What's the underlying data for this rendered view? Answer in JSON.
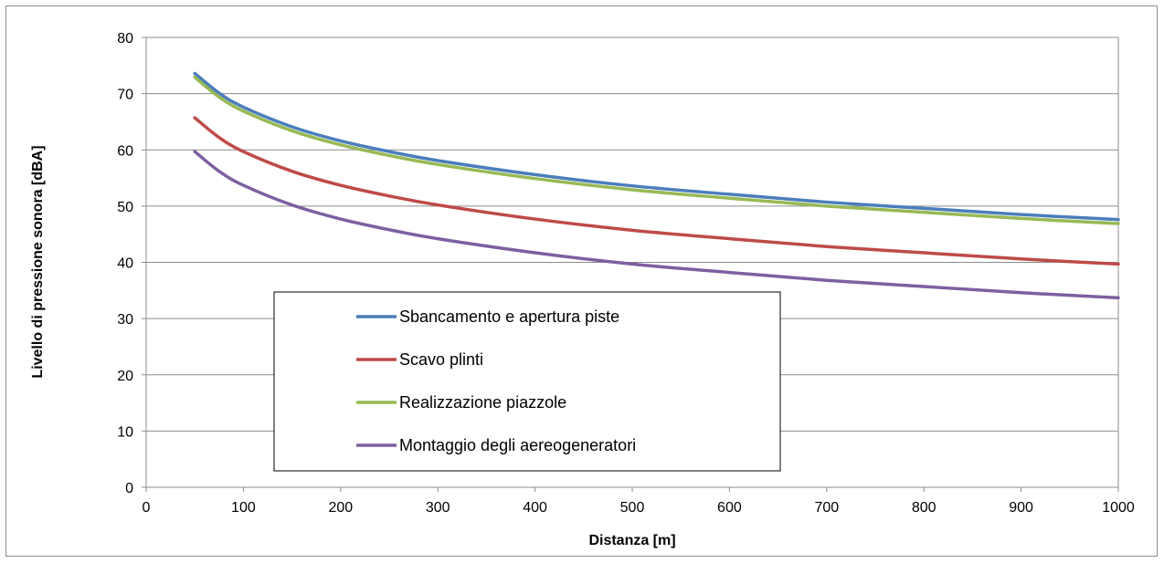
{
  "chart_data": {
    "type": "line",
    "title": "",
    "xlabel": "Distanza [m]",
    "ylabel": "Livello di pressione sonora [dBA]",
    "xlim": [
      0,
      1000
    ],
    "ylim": [
      0,
      80
    ],
    "xticks": [
      0,
      100,
      200,
      300,
      400,
      500,
      600,
      700,
      800,
      900,
      1000
    ],
    "yticks": [
      0,
      10,
      20,
      30,
      40,
      50,
      60,
      70,
      80
    ],
    "grid": "horizontal",
    "legend_position": "lower-left inside plot",
    "x": [
      50,
      75,
      100,
      150,
      200,
      250,
      300,
      400,
      500,
      600,
      700,
      800,
      900,
      1000
    ],
    "series": [
      {
        "name": "Sbancamento e apertura piste",
        "color": "#4a7ebb",
        "values": [
          73.6,
          70.1,
          67.6,
          64.1,
          61.6,
          59.7,
          58.1,
          55.6,
          53.6,
          52.1,
          50.7,
          49.6,
          48.5,
          47.6
        ]
      },
      {
        "name": "Scavo plinti",
        "color": "#be4b48",
        "values": [
          65.7,
          62.2,
          59.7,
          56.2,
          53.7,
          51.8,
          50.2,
          47.7,
          45.7,
          44.2,
          42.8,
          41.7,
          40.6,
          39.7
        ]
      },
      {
        "name": "Realizzazione piazzole",
        "color": "#98b954",
        "values": [
          72.9,
          69.4,
          66.9,
          63.4,
          60.9,
          59.0,
          57.4,
          54.9,
          52.9,
          51.4,
          50.0,
          48.9,
          47.8,
          46.9
        ]
      },
      {
        "name": "Montaggio degli aereogeneratori",
        "color": "#7d60a0",
        "values": [
          59.7,
          56.2,
          53.7,
          50.2,
          47.7,
          45.8,
          44.2,
          41.7,
          39.7,
          38.2,
          36.8,
          35.7,
          34.6,
          33.7
        ]
      }
    ]
  }
}
